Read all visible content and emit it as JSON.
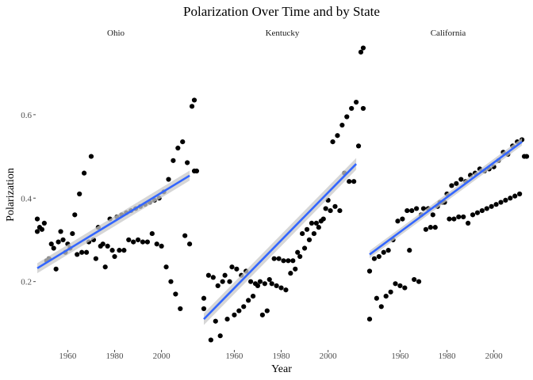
{
  "chart_data": {
    "type": "scatter",
    "title": "Polarization Over Time and by State",
    "xlabel": "Year",
    "ylabel": "Polarization",
    "xlim": [
      1947,
      2014
    ],
    "ylim": [
      0.04,
      0.78
    ],
    "x_ticks": [
      1960,
      1980,
      2000
    ],
    "y_ticks": [
      0.2,
      0.4,
      0.6
    ],
    "grid": false,
    "point_color": "#000000",
    "trend_color": "#3366ff",
    "band_color": "#c8c8c8",
    "facets": [
      {
        "label": "Ohio",
        "trend": {
          "x": [
            1947,
            2012
          ],
          "y": [
            0.232,
            0.454
          ],
          "se": 0.012
        },
        "points": [
          [
            1947,
            0.35
          ],
          [
            1947,
            0.32
          ],
          [
            1948,
            0.33
          ],
          [
            1949,
            0.325
          ],
          [
            1950,
            0.34
          ],
          [
            1951,
            0.25
          ],
          [
            1952,
            0.255
          ],
          [
            1953,
            0.29
          ],
          [
            1954,
            0.28
          ],
          [
            1955,
            0.23
          ],
          [
            1956,
            0.295
          ],
          [
            1957,
            0.32
          ],
          [
            1958,
            0.3
          ],
          [
            1959,
            0.27
          ],
          [
            1960,
            0.29
          ],
          [
            1961,
            0.28
          ],
          [
            1962,
            0.315
          ],
          [
            1963,
            0.36
          ],
          [
            1964,
            0.265
          ],
          [
            1965,
            0.41
          ],
          [
            1966,
            0.27
          ],
          [
            1967,
            0.46
          ],
          [
            1968,
            0.27
          ],
          [
            1969,
            0.295
          ],
          [
            1970,
            0.5
          ],
          [
            1971,
            0.3
          ],
          [
            1972,
            0.255
          ],
          [
            1973,
            0.33
          ],
          [
            1974,
            0.285
          ],
          [
            1975,
            0.29
          ],
          [
            1976,
            0.235
          ],
          [
            1977,
            0.285
          ],
          [
            1978,
            0.35
          ],
          [
            1979,
            0.275
          ],
          [
            1980,
            0.26
          ],
          [
            1981,
            0.355
          ],
          [
            1982,
            0.275
          ],
          [
            1983,
            0.36
          ],
          [
            1984,
            0.275
          ],
          [
            1985,
            0.365
          ],
          [
            1986,
            0.3
          ],
          [
            1987,
            0.37
          ],
          [
            1988,
            0.295
          ],
          [
            1989,
            0.375
          ],
          [
            1990,
            0.3
          ],
          [
            1991,
            0.38
          ],
          [
            1992,
            0.295
          ],
          [
            1993,
            0.385
          ],
          [
            1994,
            0.295
          ],
          [
            1995,
            0.39
          ],
          [
            1996,
            0.315
          ],
          [
            1997,
            0.395
          ],
          [
            1998,
            0.29
          ],
          [
            1999,
            0.4
          ],
          [
            2000,
            0.285
          ],
          [
            2001,
            0.415
          ],
          [
            2002,
            0.235
          ],
          [
            2003,
            0.445
          ],
          [
            2004,
            0.2
          ],
          [
            2005,
            0.49
          ],
          [
            2006,
            0.17
          ],
          [
            2007,
            0.52
          ],
          [
            2008,
            0.135
          ],
          [
            2009,
            0.535
          ],
          [
            2010,
            0.31
          ],
          [
            2011,
            0.485
          ],
          [
            2012,
            0.29
          ],
          [
            2013,
            0.62
          ],
          [
            2014,
            0.465
          ],
          [
            2014,
            0.635
          ],
          [
            2015,
            0.465
          ]
        ]
      },
      {
        "label": "Kentucky",
        "trend": {
          "x": [
            1947,
            2012
          ],
          "y": [
            0.11,
            0.482
          ],
          "se": 0.014
        },
        "points": [
          [
            1947,
            0.16
          ],
          [
            1947,
            0.135
          ],
          [
            1949,
            0.215
          ],
          [
            1950,
            0.06
          ],
          [
            1951,
            0.21
          ],
          [
            1952,
            0.105
          ],
          [
            1953,
            0.19
          ],
          [
            1954,
            0.07
          ],
          [
            1955,
            0.2
          ],
          [
            1956,
            0.215
          ],
          [
            1957,
            0.11
          ],
          [
            1958,
            0.2
          ],
          [
            1959,
            0.235
          ],
          [
            1960,
            0.12
          ],
          [
            1961,
            0.23
          ],
          [
            1962,
            0.13
          ],
          [
            1963,
            0.215
          ],
          [
            1964,
            0.14
          ],
          [
            1965,
            0.225
          ],
          [
            1966,
            0.155
          ],
          [
            1967,
            0.2
          ],
          [
            1968,
            0.165
          ],
          [
            1969,
            0.195
          ],
          [
            1970,
            0.19
          ],
          [
            1971,
            0.2
          ],
          [
            1972,
            0.12
          ],
          [
            1973,
            0.195
          ],
          [
            1974,
            0.13
          ],
          [
            1975,
            0.205
          ],
          [
            1976,
            0.195
          ],
          [
            1977,
            0.255
          ],
          [
            1978,
            0.19
          ],
          [
            1979,
            0.255
          ],
          [
            1980,
            0.185
          ],
          [
            1981,
            0.25
          ],
          [
            1982,
            0.18
          ],
          [
            1983,
            0.25
          ],
          [
            1984,
            0.22
          ],
          [
            1985,
            0.25
          ],
          [
            1986,
            0.23
          ],
          [
            1987,
            0.27
          ],
          [
            1988,
            0.26
          ],
          [
            1989,
            0.315
          ],
          [
            1990,
            0.28
          ],
          [
            1991,
            0.325
          ],
          [
            1992,
            0.3
          ],
          [
            1993,
            0.34
          ],
          [
            1994,
            0.315
          ],
          [
            1995,
            0.34
          ],
          [
            1996,
            0.33
          ],
          [
            1997,
            0.345
          ],
          [
            1998,
            0.35
          ],
          [
            1999,
            0.375
          ],
          [
            2000,
            0.395
          ],
          [
            2001,
            0.37
          ],
          [
            2002,
            0.535
          ],
          [
            2003,
            0.38
          ],
          [
            2004,
            0.55
          ],
          [
            2005,
            0.37
          ],
          [
            2006,
            0.575
          ],
          [
            2007,
            0.46
          ],
          [
            2008,
            0.595
          ],
          [
            2009,
            0.44
          ],
          [
            2010,
            0.615
          ],
          [
            2011,
            0.44
          ],
          [
            2012,
            0.63
          ],
          [
            2013,
            0.525
          ],
          [
            2014,
            0.75
          ],
          [
            2015,
            0.615
          ],
          [
            2015,
            0.76
          ]
        ]
      },
      {
        "label": "California",
        "trend": {
          "x": [
            1947,
            2012
          ],
          "y": [
            0.265,
            0.535
          ],
          "se": 0.009
        },
        "points": [
          [
            1947,
            0.225
          ],
          [
            1947,
            0.11
          ],
          [
            1949,
            0.255
          ],
          [
            1950,
            0.16
          ],
          [
            1951,
            0.26
          ],
          [
            1952,
            0.14
          ],
          [
            1953,
            0.27
          ],
          [
            1954,
            0.165
          ],
          [
            1955,
            0.275
          ],
          [
            1956,
            0.175
          ],
          [
            1957,
            0.3
          ],
          [
            1958,
            0.195
          ],
          [
            1959,
            0.345
          ],
          [
            1960,
            0.19
          ],
          [
            1961,
            0.35
          ],
          [
            1962,
            0.185
          ],
          [
            1963,
            0.37
          ],
          [
            1964,
            0.275
          ],
          [
            1965,
            0.37
          ],
          [
            1966,
            0.205
          ],
          [
            1967,
            0.375
          ],
          [
            1968,
            0.2
          ],
          [
            1969,
            0.36
          ],
          [
            1970,
            0.375
          ],
          [
            1971,
            0.325
          ],
          [
            1972,
            0.375
          ],
          [
            1973,
            0.33
          ],
          [
            1974,
            0.36
          ],
          [
            1975,
            0.33
          ],
          [
            1976,
            0.38
          ],
          [
            1977,
            0.39
          ],
          [
            1978,
            0.39
          ],
          [
            1979,
            0.39
          ],
          [
            1980,
            0.41
          ],
          [
            1981,
            0.35
          ],
          [
            1982,
            0.43
          ],
          [
            1983,
            0.35
          ],
          [
            1984,
            0.435
          ],
          [
            1985,
            0.355
          ],
          [
            1986,
            0.445
          ],
          [
            1987,
            0.355
          ],
          [
            1988,
            0.44
          ],
          [
            1989,
            0.34
          ],
          [
            1990,
            0.455
          ],
          [
            1991,
            0.36
          ],
          [
            1992,
            0.46
          ],
          [
            1993,
            0.365
          ],
          [
            1994,
            0.47
          ],
          [
            1995,
            0.37
          ],
          [
            1996,
            0.465
          ],
          [
            1997,
            0.375
          ],
          [
            1998,
            0.47
          ],
          [
            1999,
            0.38
          ],
          [
            2000,
            0.475
          ],
          [
            2001,
            0.385
          ],
          [
            2002,
            0.49
          ],
          [
            2003,
            0.39
          ],
          [
            2004,
            0.51
          ],
          [
            2005,
            0.395
          ],
          [
            2006,
            0.505
          ],
          [
            2007,
            0.4
          ],
          [
            2008,
            0.525
          ],
          [
            2009,
            0.405
          ],
          [
            2010,
            0.535
          ],
          [
            2011,
            0.41
          ],
          [
            2012,
            0.54
          ],
          [
            2013,
            0.5
          ],
          [
            2014,
            0.5
          ]
        ]
      }
    ]
  }
}
